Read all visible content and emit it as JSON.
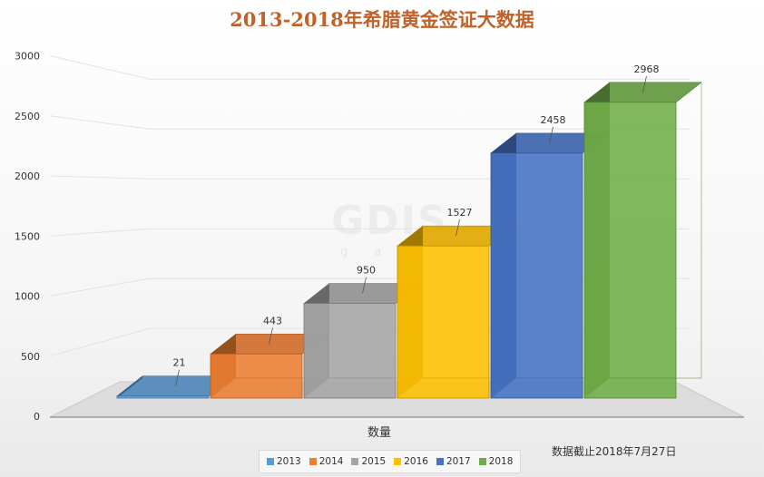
{
  "chart_data": {
    "type": "bar",
    "title": "2013-2018年希腊黄金签证大数据",
    "xlabel": "数量",
    "ylabel": "",
    "ylim": [
      0,
      3000
    ],
    "yticks": [
      0,
      500,
      1000,
      1500,
      2000,
      2500,
      3000
    ],
    "grid": true,
    "legend_position": "bottom",
    "categories": [
      "数量"
    ],
    "series": [
      {
        "name": "2013",
        "values": [
          21
        ],
        "color": "#5b9bd5"
      },
      {
        "name": "2014",
        "values": [
          443
        ],
        "color": "#ed7d31"
      },
      {
        "name": "2015",
        "values": [
          950
        ],
        "color": "#a5a5a5"
      },
      {
        "name": "2016",
        "values": [
          1527
        ],
        "color": "#ffc000"
      },
      {
        "name": "2017",
        "values": [
          2458
        ],
        "color": "#4472c4"
      },
      {
        "name": "2018",
        "values": [
          2968
        ],
        "color": "#70ad47"
      }
    ]
  },
  "note": "数据截止2018年7月27日",
  "watermark": {
    "text": "GDIS",
    "sub": "g a o d i"
  }
}
